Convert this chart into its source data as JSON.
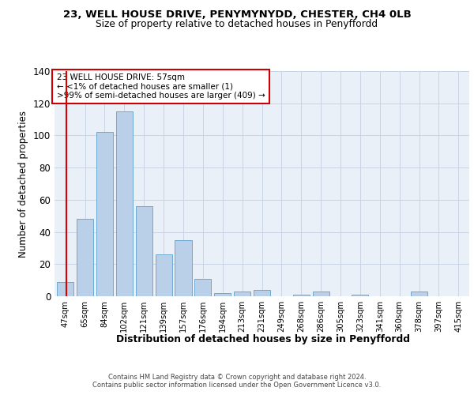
{
  "title1": "23, WELL HOUSE DRIVE, PENYMYNYDD, CHESTER, CH4 0LB",
  "title2": "Size of property relative to detached houses in Penyffordd",
  "xlabel": "Distribution of detached houses by size in Penyffordd",
  "ylabel": "Number of detached properties",
  "bar_labels": [
    "47sqm",
    "65sqm",
    "84sqm",
    "102sqm",
    "121sqm",
    "139sqm",
    "157sqm",
    "176sqm",
    "194sqm",
    "213sqm",
    "231sqm",
    "249sqm",
    "268sqm",
    "286sqm",
    "305sqm",
    "323sqm",
    "341sqm",
    "360sqm",
    "378sqm",
    "397sqm",
    "415sqm"
  ],
  "bar_values": [
    9,
    48,
    102,
    115,
    56,
    26,
    35,
    11,
    2,
    3,
    4,
    0,
    1,
    3,
    0,
    1,
    0,
    0,
    3,
    0,
    0
  ],
  "bar_color": "#bad0e8",
  "bar_edge_color": "#6aaad4",
  "grid_color": "#c8d4e4",
  "background_color": "#eaf0f8",
  "vline_color": "#dd0000",
  "annotation_line1": "23 WELL HOUSE DRIVE: 57sqm",
  "annotation_line2": "← <1% of detached houses are smaller (1)",
  "annotation_line3": ">99% of semi-detached houses are larger (409) →",
  "annotation_box_color": "white",
  "annotation_box_edge": "#cc0000",
  "footer1": "Contains HM Land Registry data © Crown copyright and database right 2024.",
  "footer2": "Contains public sector information licensed under the Open Government Licence v3.0.",
  "ylim": [
    0,
    140
  ],
  "yticks": [
    0,
    20,
    40,
    60,
    80,
    100,
    120,
    140
  ],
  "vline_pos": 0.056
}
